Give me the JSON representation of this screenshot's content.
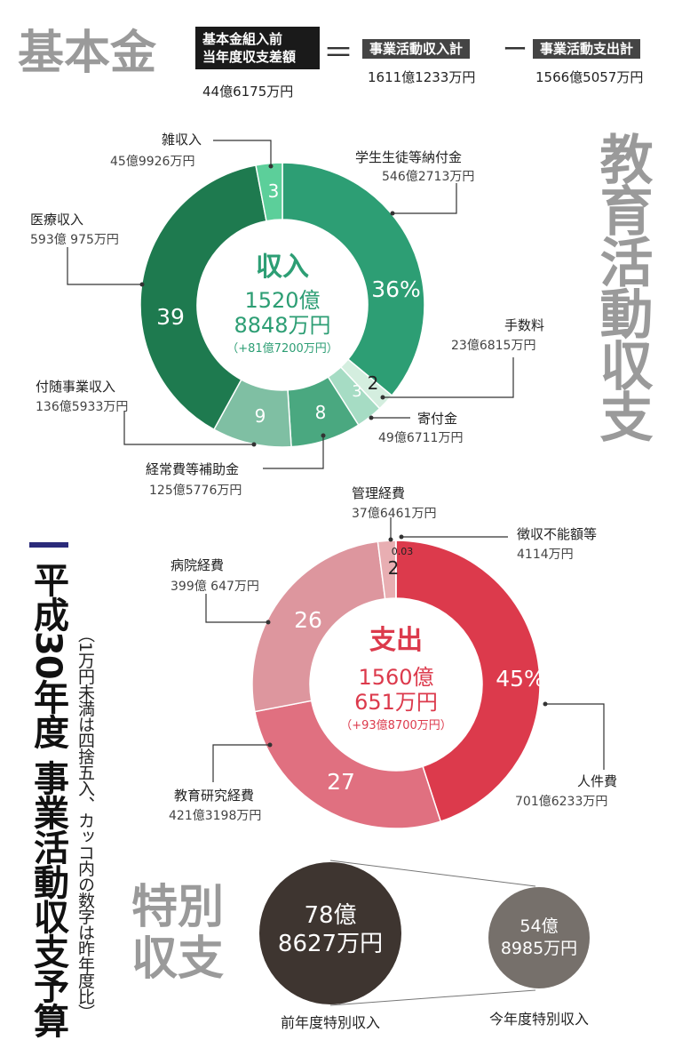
{
  "header": {
    "title": "基本金",
    "box_line1": "基本金組入前",
    "box_line2": "当年度収支差額",
    "box_value": "44億6175万円",
    "eq": "＝",
    "minus": "ー",
    "income_label": "事業活動収入計",
    "income_value": "1611億1233万円",
    "expense_label": "事業活動支出計",
    "expense_value": "1566億5057万円"
  },
  "side": {
    "kyoiku": "教育活動収支",
    "main_title": "平成30年度 事業活動収支予算",
    "note": "（1万円未満は四捨五入、カッコ内の数字は昨年度比）",
    "tokubetsu": "特別収支"
  },
  "income": {
    "center_title": "収入",
    "center_v1": "1520億",
    "center_v2": "8848万円",
    "center_v3": "（+81億7200万円）",
    "colors": {
      "main": "#2d9e74",
      "dark": "#1e7a4f",
      "light": "#5ccf9a",
      "pale": "#a6dcc4",
      "pale2": "#d4eedf",
      "mid": "#4aa880",
      "mid2": "#7fbfa3"
    },
    "labels": {
      "zatsu": "雑収入",
      "zatsu_v": "45億9926万円",
      "gakusei": "学生生徒等納付金",
      "gakusei_v": "546億2713万円",
      "iryo": "医療収入",
      "iryo_v": "593億 975万円",
      "tesu": "手数料",
      "tesu_v": "23億6815万円",
      "kifu": "寄付金",
      "kifu_v": "49億6711万円",
      "futai": "付随事業収入",
      "futai_v": "136億5933万円",
      "keijo": "経常費等補助金",
      "keijo_v": "125億5776万円"
    }
  },
  "expense": {
    "center_title": "支出",
    "center_v1": "1560億",
    "center_v2": "651万円",
    "center_v3": "（+93億8700万円）",
    "colors": {
      "main": "#dc3a4c",
      "mid": "#e07080",
      "light": "#dd969e",
      "pale": "#e8aeb2",
      "line": "#333333"
    },
    "labels": {
      "kanri": "管理経費",
      "kanri_v": "37億6461万円",
      "choshu": "徴収不能額等",
      "choshu_v": "4114万円",
      "byoin": "病院経費",
      "byoin_v": "399億 647万円",
      "jinken": "人件費",
      "jinken_v": "701億6233万円",
      "kyoiku": "教育研究経費",
      "kyoiku_v": "421億3198万円"
    }
  },
  "special": {
    "prev_v1": "78億",
    "prev_v2": "8627万円",
    "prev_label": "前年度特別収入",
    "curr_v1": "54億",
    "curr_v2": "8985万円",
    "curr_label": "今年度特別収入",
    "prev_color": "#3e3530",
    "curr_color": "#76706b"
  },
  "chart_data": [
    {
      "type": "pie",
      "title": "収入",
      "unit": "%",
      "categories": [
        "学生生徒等納付金",
        "手数料",
        "寄付金",
        "経常費等補助金",
        "付随事業収入",
        "医療収入",
        "雑収入"
      ],
      "values": [
        36,
        2,
        3,
        8,
        9,
        39,
        3
      ],
      "amounts": [
        "546億2713万円",
        "23億6815万円",
        "49億6711万円",
        "125億5776万円",
        "136億5933万円",
        "593億 975万円",
        "45億9926万円"
      ],
      "total": "1520億8848万円"
    },
    {
      "type": "pie",
      "title": "支出",
      "unit": "%",
      "categories": [
        "人件費",
        "教育研究経費",
        "病院経費",
        "管理経費",
        "徴収不能額等"
      ],
      "values": [
        45,
        27,
        26,
        2,
        0.03
      ],
      "amounts": [
        "701億6233万円",
        "421億3198万円",
        "399億 647万円",
        "37億6461万円",
        "4114万円"
      ],
      "total": "1560億651万円"
    }
  ]
}
